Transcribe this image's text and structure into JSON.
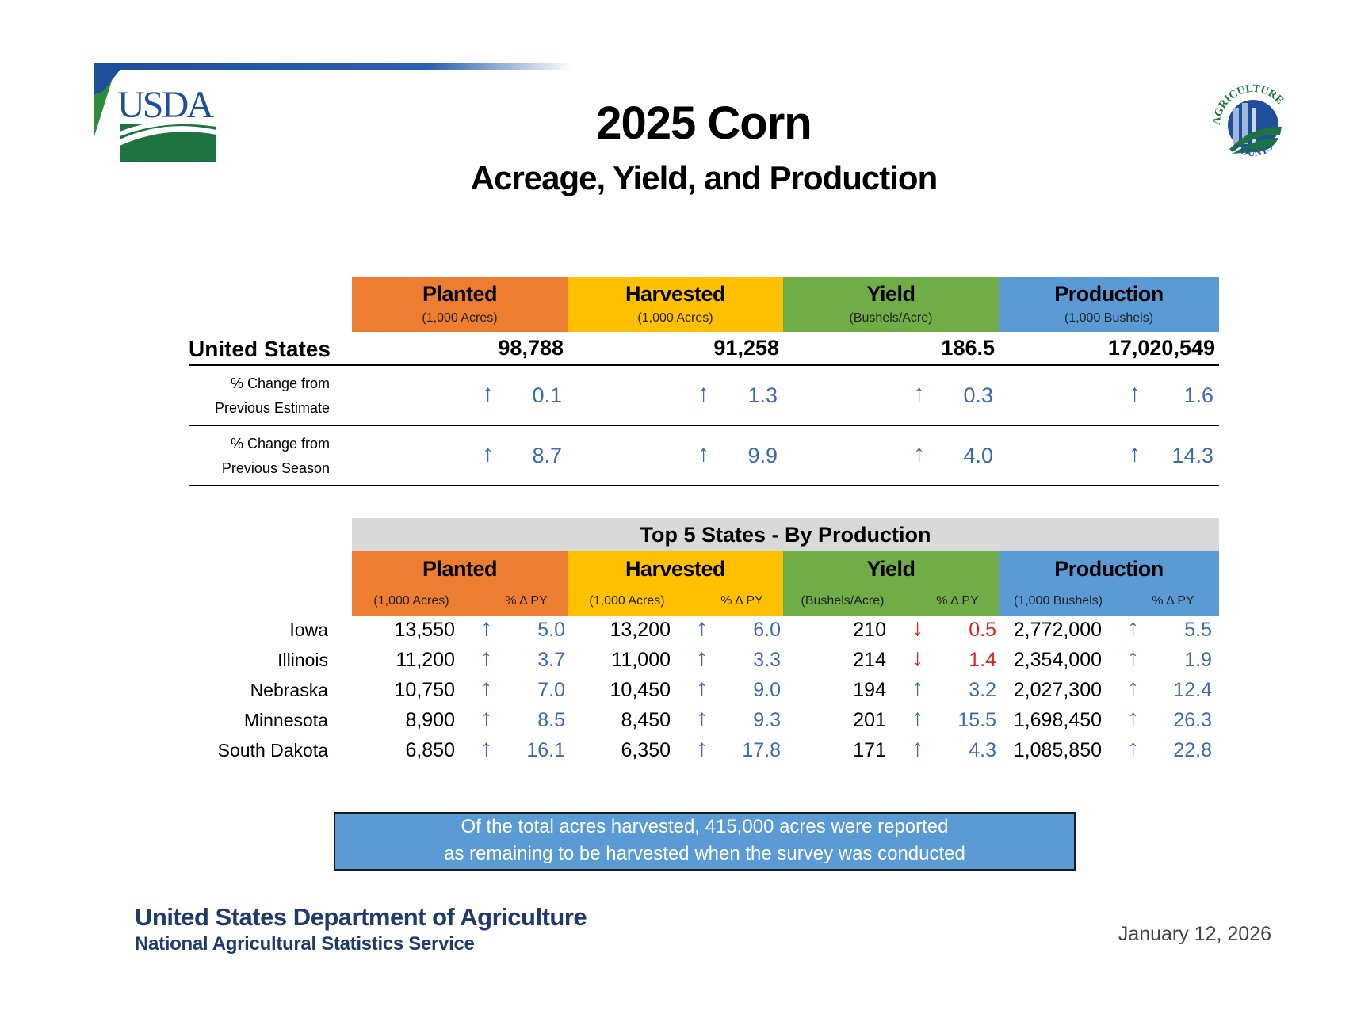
{
  "header": {
    "title": "2025 Corn",
    "subtitle": "Acreage, Yield, and Production",
    "logo_left": "USDA",
    "logo_right": "AGRICULTURE COUNTS"
  },
  "colors": {
    "planted": "#ed7d31",
    "harvested": "#ffc000",
    "yield": "#70ad47",
    "production": "#5b9bd5",
    "up": "#3a6bb0",
    "down": "#e02020",
    "band": "#d9d9d9"
  },
  "national": {
    "columns": [
      {
        "label": "Planted",
        "unit": "(1,000 Acres)"
      },
      {
        "label": "Harvested",
        "unit": "(1,000 Acres)"
      },
      {
        "label": "Yield",
        "unit": "(Bushels/Acre)"
      },
      {
        "label": "Production",
        "unit": "(1,000 Bushels)"
      }
    ],
    "us_label": "United States",
    "us_values": [
      "98,788",
      "91,258",
      "186.5",
      "17,020,549"
    ],
    "change_rows": [
      {
        "label_line1": "% Change from",
        "label_line2": "Previous Estimate",
        "values": [
          {
            "dir": "up",
            "value": "0.1"
          },
          {
            "dir": "up",
            "value": "1.3"
          },
          {
            "dir": "up",
            "value": "0.3"
          },
          {
            "dir": "up",
            "value": "1.6"
          }
        ]
      },
      {
        "label_line1": "% Change from",
        "label_line2": "Previous Season",
        "values": [
          {
            "dir": "up",
            "value": "8.7"
          },
          {
            "dir": "up",
            "value": "9.9"
          },
          {
            "dir": "up",
            "value": "4.0"
          },
          {
            "dir": "up",
            "value": "14.3"
          }
        ]
      }
    ]
  },
  "states": {
    "title": "Top 5 States - By Production",
    "columns": [
      {
        "label": "Planted",
        "unit": "(1,000 Acres)",
        "pct": "% Δ PY"
      },
      {
        "label": "Harvested",
        "unit": "(1,000 Acres)",
        "pct": "% Δ PY"
      },
      {
        "label": "Yield",
        "unit": "(Bushels/Acre)",
        "pct": "% Δ PY"
      },
      {
        "label": "Production",
        "unit": "(1,000 Bushels)",
        "pct": "% Δ PY"
      }
    ],
    "rows": [
      {
        "name": "Iowa",
        "cells": [
          {
            "v": "13,550",
            "dir": "up",
            "p": "5.0"
          },
          {
            "v": "13,200",
            "dir": "up",
            "p": "6.0"
          },
          {
            "v": "210",
            "dir": "down",
            "p": "0.5"
          },
          {
            "v": "2,772,000",
            "dir": "up",
            "p": "5.5"
          }
        ]
      },
      {
        "name": "Illinois",
        "cells": [
          {
            "v": "11,200",
            "dir": "up",
            "p": "3.7"
          },
          {
            "v": "11,000",
            "dir": "up",
            "p": "3.3"
          },
          {
            "v": "214",
            "dir": "down",
            "p": "1.4"
          },
          {
            "v": "2,354,000",
            "dir": "up",
            "p": "1.9"
          }
        ]
      },
      {
        "name": "Nebraska",
        "cells": [
          {
            "v": "10,750",
            "dir": "up",
            "p": "7.0"
          },
          {
            "v": "10,450",
            "dir": "up",
            "p": "9.0"
          },
          {
            "v": "194",
            "dir": "up",
            "p": "3.2"
          },
          {
            "v": "2,027,300",
            "dir": "up",
            "p": "12.4"
          }
        ]
      },
      {
        "name": "Minnesota",
        "cells": [
          {
            "v": "8,900",
            "dir": "up",
            "p": "8.5"
          },
          {
            "v": "8,450",
            "dir": "up",
            "p": "9.3"
          },
          {
            "v": "201",
            "dir": "up",
            "p": "15.5"
          },
          {
            "v": "1,698,450",
            "dir": "up",
            "p": "26.3"
          }
        ]
      },
      {
        "name": "South Dakota",
        "cells": [
          {
            "v": "6,850",
            "dir": "up",
            "p": "16.1"
          },
          {
            "v": "6,350",
            "dir": "up",
            "p": "17.8"
          },
          {
            "v": "171",
            "dir": "up",
            "p": "4.3"
          },
          {
            "v": "1,085,850",
            "dir": "up",
            "p": "22.8"
          }
        ]
      }
    ]
  },
  "note": {
    "line1": "Of the total acres harvested, 415,000 acres were reported",
    "line2": "as remaining to be harvested when the survey was conducted"
  },
  "footer": {
    "department": "United States Department of Agriculture",
    "agency": "National Agricultural Statistics Service",
    "date": "January 12, 2026"
  }
}
